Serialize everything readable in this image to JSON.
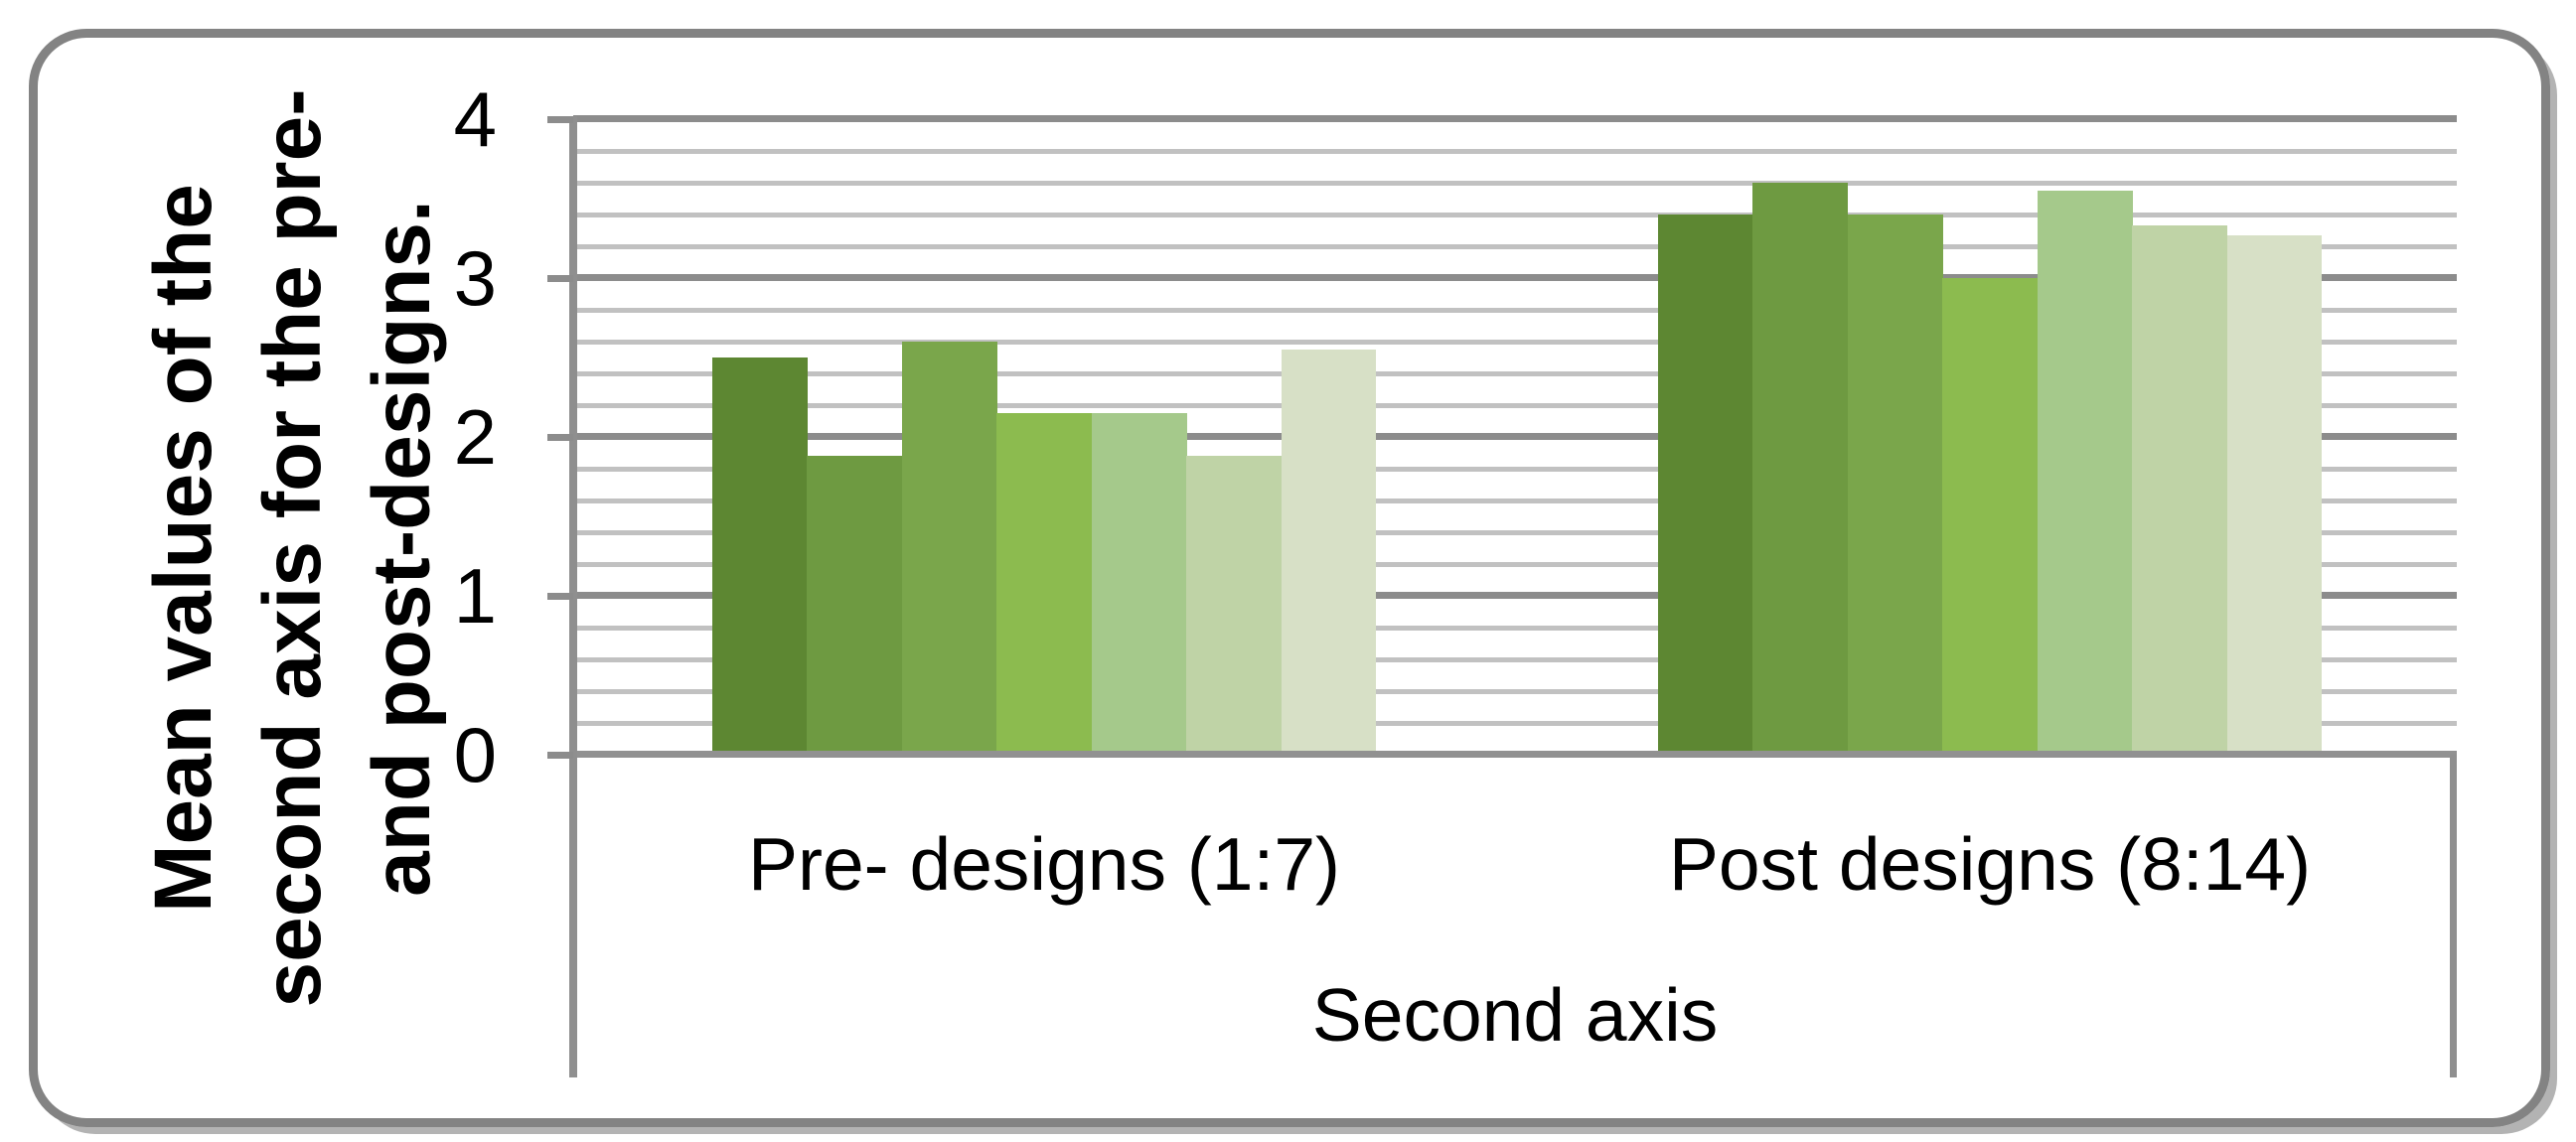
{
  "chart_data": {
    "type": "bar",
    "title": "",
    "categories": [
      "Pre- designs (1:7)",
      "Post designs (8:14)"
    ],
    "series": [
      {
        "color": "#5d8732",
        "values": [
          2.5,
          3.4
        ]
      },
      {
        "color": "#6e9a41",
        "values": [
          1.88,
          3.6
        ]
      },
      {
        "color": "#7aa64b",
        "values": [
          2.6,
          3.4
        ]
      },
      {
        "color": "#8cbb4f",
        "values": [
          2.15,
          3.0
        ]
      },
      {
        "color": "#a5c98b",
        "values": [
          2.15,
          3.55
        ]
      },
      {
        "color": "#bfd3a6",
        "values": [
          1.88,
          3.33
        ]
      },
      {
        "color": "#d7e0c6",
        "values": [
          2.55,
          3.27
        ]
      }
    ],
    "xlabel": "Second axis",
    "ylabel": "Mean values of the second axis for the pre- and post-designs.",
    "ylabel_lines": [
      "Mean values of the",
      "second axis for the pre-",
      "and post-designs."
    ],
    "ylim": [
      0,
      4
    ],
    "ytick_labels": [
      "0",
      "1",
      "2",
      "3",
      "4"
    ],
    "major_step": 1,
    "minor_step": 0.2,
    "grid": "horizontal, major and minor lines",
    "legend": "none"
  },
  "colors": {
    "frame_border": "#838383",
    "frame_shadow": "#b3b3b3",
    "major_gridline": "#8c8c8c",
    "minor_gridline": "#c1c1c1",
    "axis_line": "#8f8f8f",
    "text": "#000000",
    "background": "#ffffff"
  }
}
